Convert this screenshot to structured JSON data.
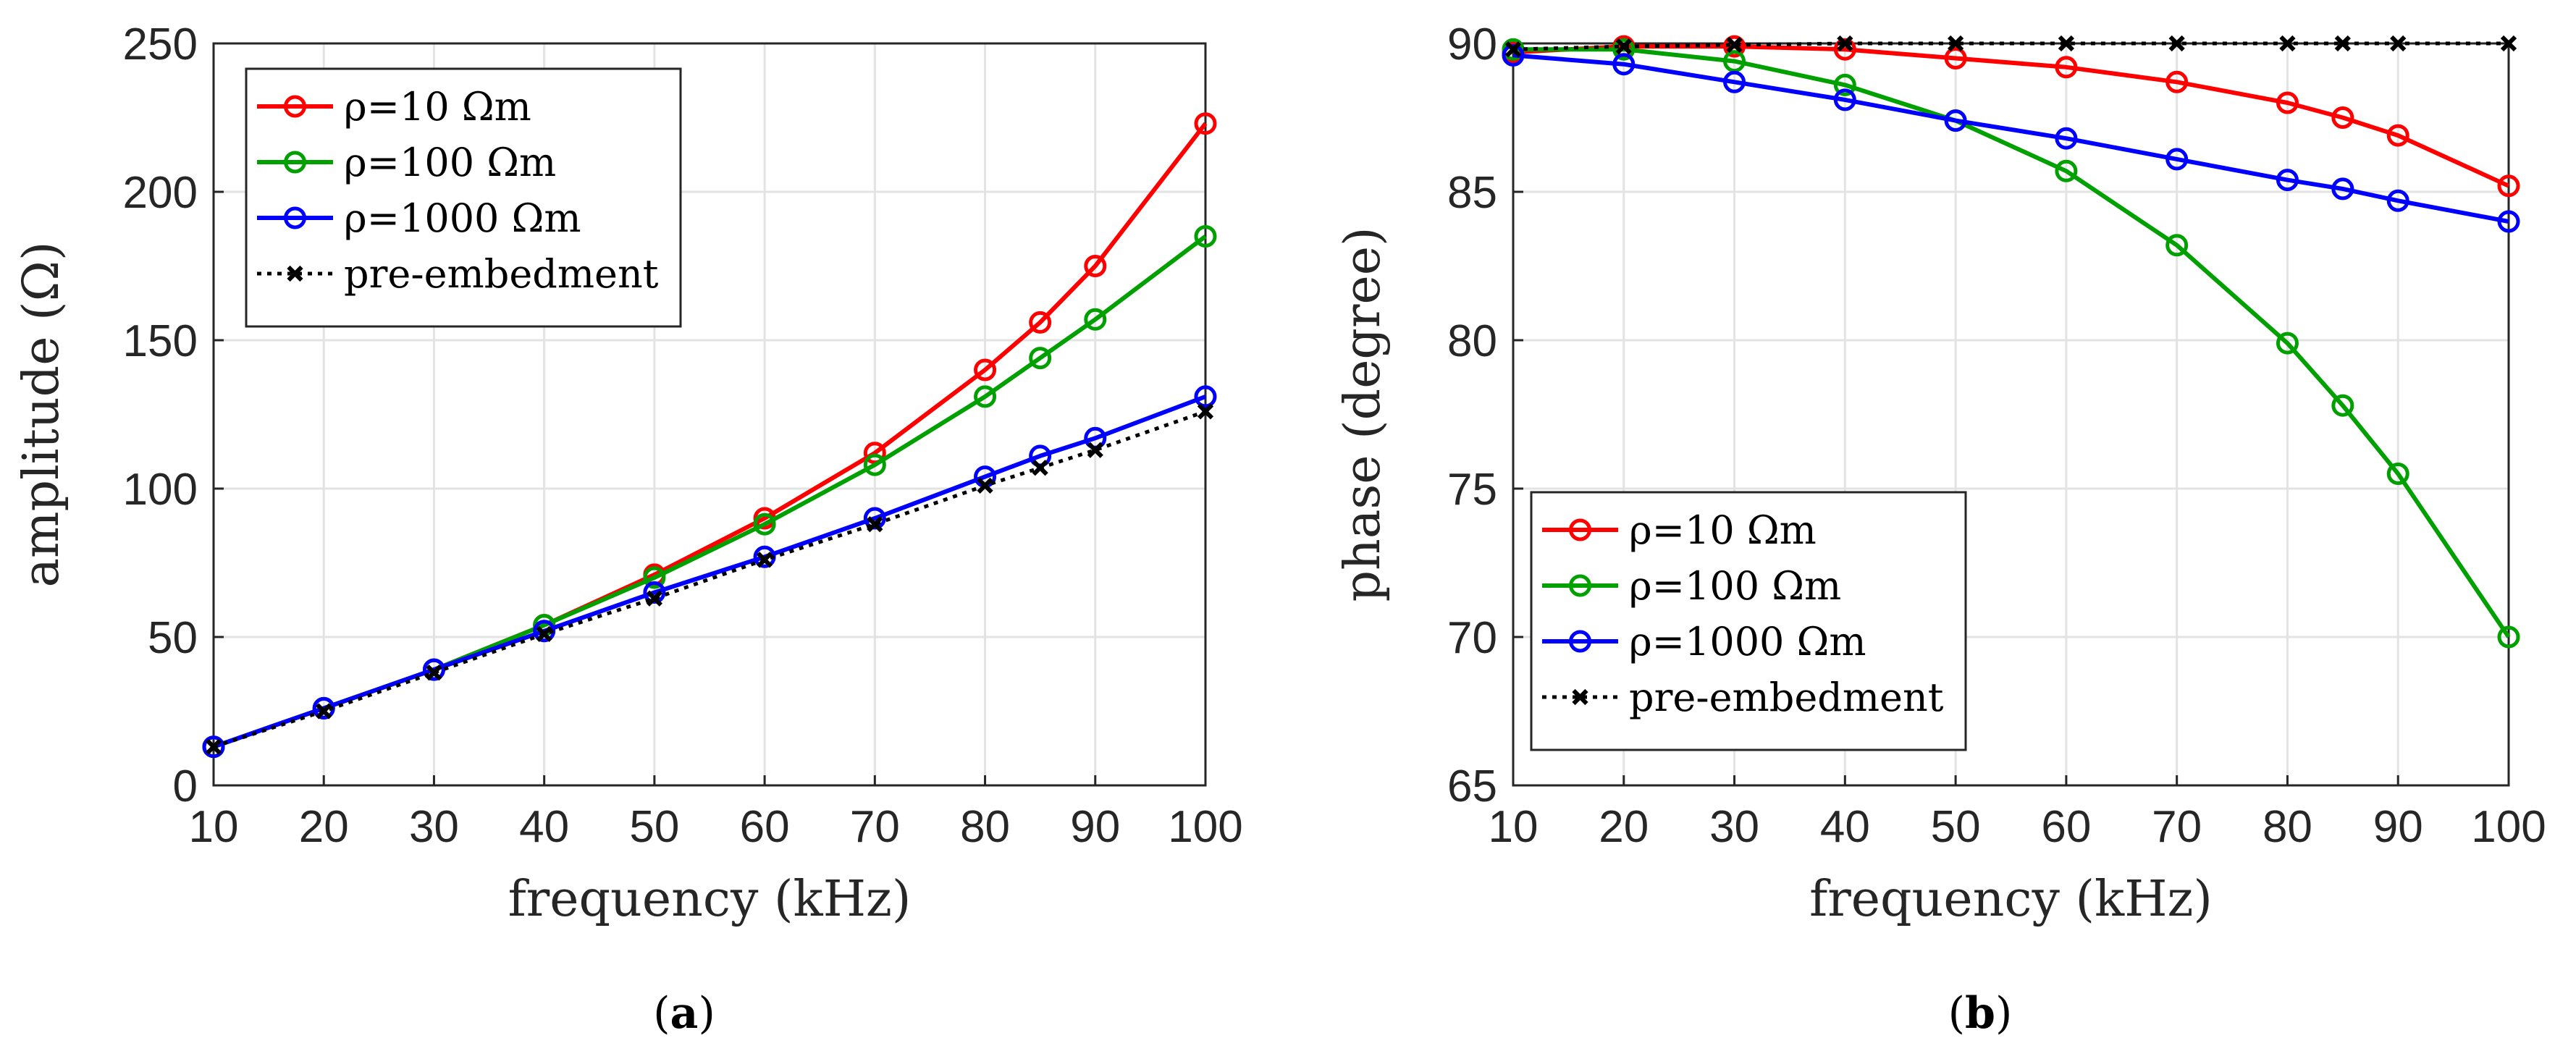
{
  "chart_data": [
    {
      "type": "line",
      "panel": "a",
      "caption_letter": "a",
      "xlabel": "frequency (kHz)",
      "ylabel": "amplitude (Ω)",
      "x": [
        10,
        20,
        30,
        40,
        50,
        60,
        70,
        80,
        85,
        90,
        100
      ],
      "xticks": [
        10,
        20,
        30,
        40,
        50,
        60,
        70,
        80,
        90,
        100
      ],
      "yticks": [
        0,
        50,
        100,
        150,
        200,
        250
      ],
      "xlim": [
        10,
        100
      ],
      "ylim": [
        0,
        250
      ],
      "grid": true,
      "legend_position": "top-left",
      "series": [
        {
          "name": "ρ=10 Ωm",
          "color": "#ff0000",
          "marker": "circle",
          "linestyle": "solid",
          "values": [
            13,
            26,
            39,
            54,
            71,
            90,
            112,
            140,
            156,
            175,
            223
          ]
        },
        {
          "name": "ρ=100 Ωm",
          "color": "#00a000",
          "marker": "circle",
          "linestyle": "solid",
          "values": [
            13,
            26,
            39,
            54,
            70,
            88,
            108,
            131,
            144,
            157,
            185
          ]
        },
        {
          "name": "ρ=1000 Ωm",
          "color": "#0000ff",
          "marker": "circle",
          "linestyle": "solid",
          "values": [
            13,
            26,
            39,
            52,
            65,
            77,
            90,
            104,
            111,
            117,
            131
          ]
        },
        {
          "name": "pre-embedment",
          "color": "#000000",
          "marker": "x",
          "linestyle": "dotted",
          "values": [
            13,
            25,
            38,
            51,
            63,
            76,
            88,
            101,
            107,
            113,
            126
          ]
        }
      ]
    },
    {
      "type": "line",
      "panel": "b",
      "caption_letter": "b",
      "xlabel": "frequency (kHz)",
      "ylabel": "phase (degree)",
      "x": [
        10,
        20,
        30,
        40,
        50,
        60,
        70,
        80,
        85,
        90,
        100
      ],
      "xticks": [
        10,
        20,
        30,
        40,
        50,
        60,
        70,
        80,
        90,
        100
      ],
      "yticks": [
        65,
        70,
        75,
        80,
        85,
        90
      ],
      "xlim": [
        10,
        100
      ],
      "ylim": [
        65,
        90
      ],
      "grid": true,
      "legend_position": "bottom-left",
      "series": [
        {
          "name": "ρ=10 Ωm",
          "color": "#ff0000",
          "marker": "circle",
          "linestyle": "solid",
          "values": [
            89.7,
            89.9,
            89.9,
            89.8,
            89.5,
            89.2,
            88.7,
            88.0,
            87.5,
            86.9,
            85.2
          ]
        },
        {
          "name": "ρ=100 Ωm",
          "color": "#00a000",
          "marker": "circle",
          "linestyle": "solid",
          "values": [
            89.8,
            89.8,
            89.4,
            88.6,
            87.4,
            85.7,
            83.2,
            79.9,
            77.8,
            75.5,
            70.0
          ]
        },
        {
          "name": "ρ=1000 Ωm",
          "color": "#0000ff",
          "marker": "circle",
          "linestyle": "solid",
          "values": [
            89.6,
            89.3,
            88.7,
            88.1,
            87.4,
            86.8,
            86.1,
            85.4,
            85.1,
            84.7,
            84.0
          ]
        },
        {
          "name": "pre-embedment",
          "color": "#000000",
          "marker": "x",
          "linestyle": "dotted",
          "values": [
            89.8,
            89.9,
            89.95,
            90,
            90,
            90,
            90,
            90,
            90,
            90,
            90
          ]
        }
      ]
    }
  ]
}
